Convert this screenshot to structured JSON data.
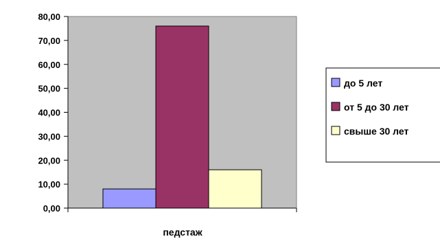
{
  "chart_data": {
    "type": "bar",
    "categories": [
      "педстаж"
    ],
    "xlabel": "педстаж",
    "ylabel": "",
    "ylim": [
      0,
      80
    ],
    "ytick_step": 10,
    "ytick_labels": [
      "0,00",
      "10,00",
      "20,00",
      "30,00",
      "40,00",
      "50,00",
      "60,00",
      "70,00",
      "80,00"
    ],
    "grid": false,
    "plot_background": "#c0c0c0",
    "legend_position": "right",
    "series": [
      {
        "name": "до 5 лет",
        "values": [
          8
        ],
        "color": "#9999ff"
      },
      {
        "name": "от 5 до 30 лет",
        "values": [
          76
        ],
        "color": "#993366"
      },
      {
        "name": "свыше 30 лет",
        "values": [
          16
        ],
        "color": "#ffffcc"
      }
    ]
  }
}
